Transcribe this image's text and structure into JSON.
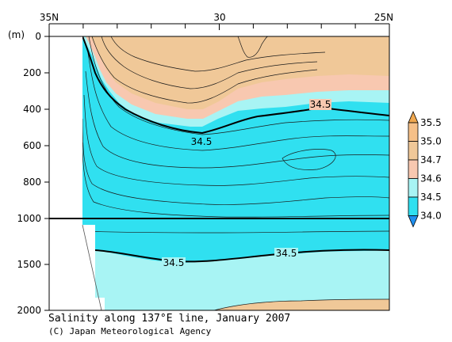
{
  "chart_data": {
    "type": "contour",
    "title": "Salinity along 137°E line, January 2007",
    "credit": "(C) Japan Meteorological Agency",
    "x_axis": {
      "tick_labels": [
        "35N",
        "30",
        "25N"
      ],
      "tick_values": [
        35,
        30,
        25
      ],
      "range": [
        35,
        25
      ]
    },
    "y_axis": {
      "unit": "(m)",
      "upper_panel": {
        "range": [
          0,
          1000
        ],
        "tick_values": [
          0,
          200,
          400,
          600,
          800,
          1000
        ]
      },
      "lower_panel": {
        "range": [
          1000,
          2000
        ],
        "tick_values": [
          1500,
          2000
        ]
      }
    },
    "contour_labels": [
      "34.5",
      "34.5",
      "34.5"
    ],
    "legend": {
      "placement": "right",
      "levels": [
        "35.5",
        "35.0",
        "34.7",
        "34.6",
        "34.5",
        "34.0"
      ],
      "colors": [
        "#f0a850",
        "#f6c088",
        "#f0c898",
        "#f8c8b0",
        "#a8f4f4",
        "#30e0f0"
      ]
    },
    "colors": {
      "fresh_water": "#30e0f0",
      "mid_water": "#a8f4f4",
      "salty_water": "#f0c898",
      "saltiest_water": "#f6c088"
    }
  }
}
